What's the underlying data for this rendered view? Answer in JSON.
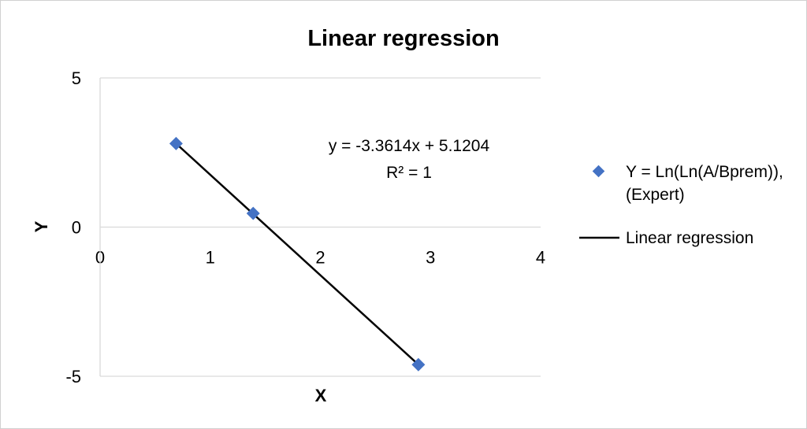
{
  "chart_data": {
    "type": "scatter",
    "title": "Linear regression",
    "xlabel": "X",
    "ylabel": "Y",
    "xlim": [
      0,
      4
    ],
    "ylim": [
      -5,
      5
    ],
    "x_ticks": [
      "0",
      "1",
      "2",
      "3",
      "4"
    ],
    "y_ticks": [
      "5",
      "0",
      "-5"
    ],
    "grid": "horizontal",
    "legend_position": "right",
    "series": [
      {
        "name": "Y = Ln(Ln(A/Bprem)), (Expert)",
        "name_lines": [
          "Y = Ln(Ln(A/Bprem)),",
          "(Expert)"
        ],
        "marker": "diamond",
        "color": "#4472C4",
        "x": [
          0.69,
          1.39,
          2.89
        ],
        "y": [
          2.8,
          0.46,
          -4.61
        ]
      },
      {
        "name": "Linear regression",
        "type": "line",
        "color": "#000000",
        "x": [
          0.69,
          2.89
        ],
        "y": [
          2.8,
          -4.61
        ]
      }
    ],
    "annotations": [
      "y = -3.3614x + 5.1204",
      "R² = 1"
    ]
  }
}
